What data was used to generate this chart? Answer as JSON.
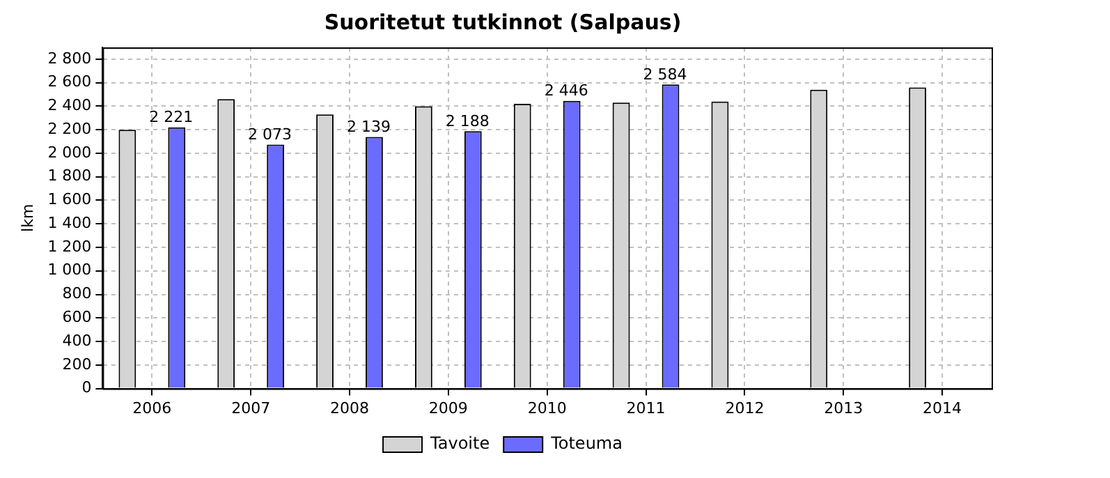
{
  "chart_data": {
    "type": "bar",
    "title": "Suoritetut tutkinnot (Salpaus)",
    "ylabel": "lkm",
    "categories": [
      "2006",
      "2007",
      "2008",
      "2009",
      "2010",
      "2011",
      "2012",
      "2013",
      "2014"
    ],
    "series": [
      {
        "name": "Tavoite",
        "color": "#d4d4d4",
        "values": [
          2200,
          2460,
          2330,
          2400,
          2420,
          2430,
          2440,
          2540,
          2560
        ]
      },
      {
        "name": "Toteuma",
        "color": "#6b6bff",
        "values": [
          2221,
          2073,
          2139,
          2188,
          2446,
          2584,
          null,
          null,
          null
        ],
        "value_labels": [
          "2 221",
          "2 073",
          "2 139",
          "2 188",
          "2 446",
          "2 584",
          null,
          null,
          null
        ]
      }
    ],
    "ylim": [
      0,
      2900
    ],
    "yticks": [
      0,
      {
        "value": 200,
        "label": "200"
      },
      {
        "value": 400,
        "label": "400"
      },
      {
        "value": 600,
        "label": "600"
      },
      {
        "value": 800,
        "label": "800"
      },
      {
        "value": 1000,
        "label": "1 000"
      },
      {
        "value": 1200,
        "label": "1 200"
      },
      {
        "value": 1400,
        "label": "1 400"
      },
      {
        "value": 1600,
        "label": "1 600"
      },
      {
        "value": 1800,
        "label": "1 800"
      },
      {
        "value": 2000,
        "label": "2 000"
      },
      {
        "value": 2200,
        "label": "2 200"
      },
      {
        "value": 2400,
        "label": "2 400"
      },
      {
        "value": 2600,
        "label": "2 600"
      },
      {
        "value": 2800,
        "label": "2 800"
      }
    ],
    "grid": true,
    "legend": "bottom"
  }
}
